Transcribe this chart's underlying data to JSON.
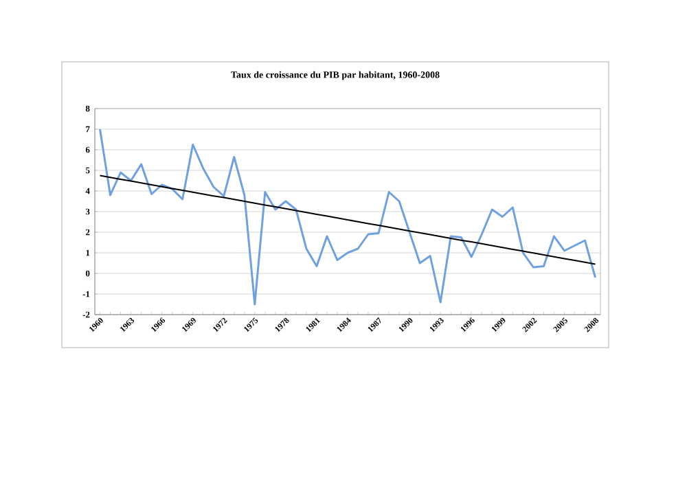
{
  "chart_data": {
    "type": "line",
    "title": "Taux de croissance du PIB par habitant, 1960-2008",
    "categories": [
      "1960",
      null,
      null,
      "1963",
      null,
      null,
      "1966",
      null,
      null,
      "1969",
      null,
      null,
      "1972",
      null,
      null,
      "1975",
      null,
      null,
      "1978",
      null,
      null,
      "1981",
      null,
      null,
      "1984",
      null,
      null,
      "1987",
      null,
      null,
      "1990",
      null,
      null,
      "1993",
      null,
      null,
      "1996",
      null,
      null,
      "1999",
      null,
      null,
      "2002",
      null,
      null,
      "2005",
      null,
      null,
      "2008"
    ],
    "series": [
      {
        "color": "#6fa0e0",
        "values": [
          7.0,
          3.8,
          4.9,
          4.5,
          5.3,
          3.85,
          4.3,
          4.1,
          3.6,
          6.25,
          5.1,
          4.2,
          3.75,
          5.65,
          3.8,
          -1.5,
          3.95,
          3.1,
          3.5,
          3.1,
          1.2,
          0.35,
          1.8,
          0.65,
          1.0,
          1.2,
          1.9,
          1.95,
          3.95,
          3.5,
          2.0,
          0.5,
          0.85,
          -1.4,
          1.8,
          1.75,
          0.8,
          1.9,
          3.1,
          2.75,
          3.2,
          1.0,
          0.3,
          0.35,
          1.8,
          1.1,
          1.35,
          1.6,
          -0.2
        ]
      },
      {
        "type": "line",
        "color": "#000000",
        "values": [
          4.75,
          4.66,
          4.57,
          4.48,
          4.39,
          4.3,
          4.21,
          4.12,
          4.03,
          3.94,
          3.85,
          3.76,
          3.68,
          3.59,
          3.5,
          3.41,
          3.32,
          3.23,
          3.14,
          3.05,
          2.96,
          2.87,
          2.78,
          2.69,
          2.6,
          2.51,
          2.42,
          2.33,
          2.24,
          2.15,
          2.06,
          1.97,
          1.88,
          1.79,
          1.7,
          1.61,
          1.53,
          1.44,
          1.35,
          1.26,
          1.17,
          1.08,
          0.99,
          0.9,
          0.81,
          0.72,
          0.63,
          0.54,
          0.45
        ]
      }
    ],
    "ylim": [
      -2,
      8
    ],
    "yticks": [
      -2,
      -1,
      0,
      1,
      2,
      3,
      4,
      5,
      6,
      7,
      8
    ],
    "grid": "y",
    "marker": "none",
    "line_style": "solid"
  }
}
